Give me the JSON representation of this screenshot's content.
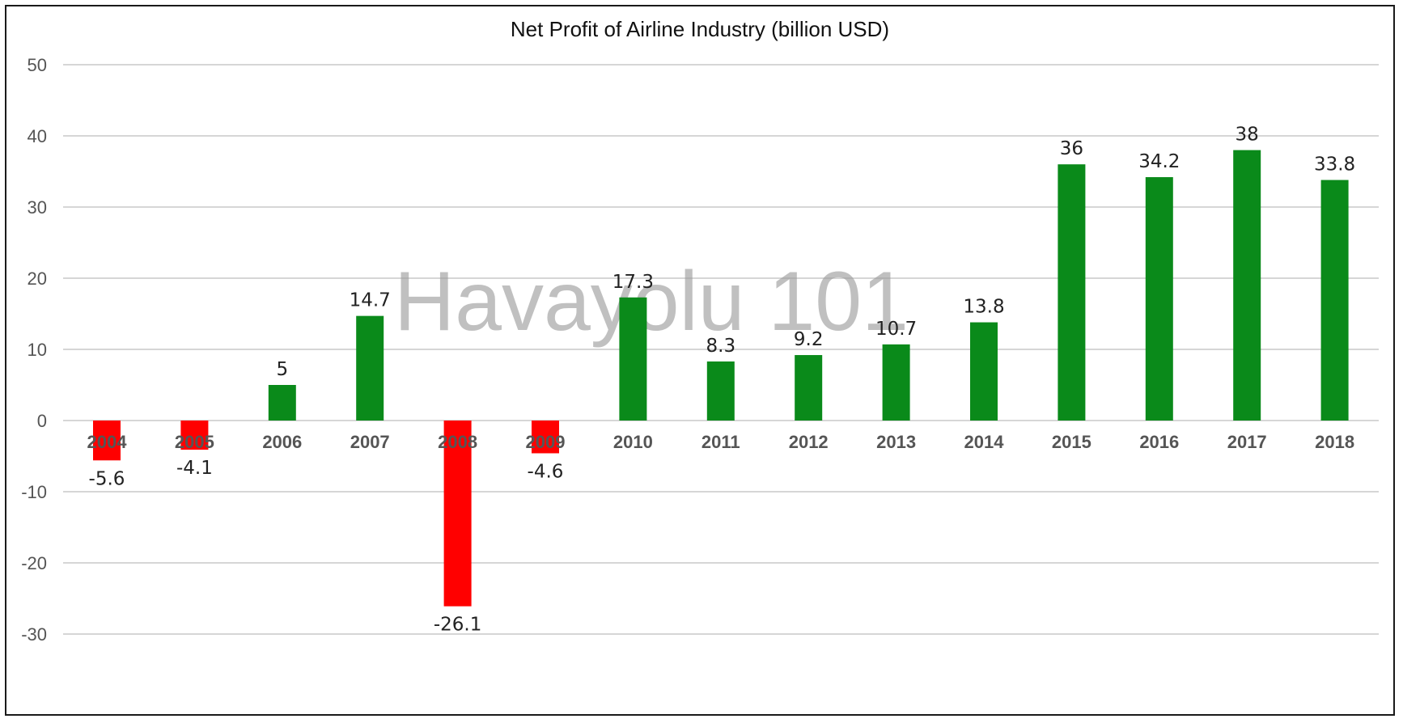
{
  "chart_data": {
    "type": "bar",
    "title": "Net Profit of Airline Industry (billion USD)",
    "xlabel": "",
    "ylabel": "",
    "categories": [
      "2004",
      "2005",
      "2006",
      "2007",
      "2008",
      "2009",
      "2010",
      "2011",
      "2012",
      "2013",
      "2014",
      "2015",
      "2016",
      "2017",
      "2018"
    ],
    "values": [
      -5.6,
      -4.1,
      5,
      14.7,
      -26.1,
      -4.6,
      17.3,
      8.3,
      9.2,
      10.7,
      13.8,
      36,
      34.2,
      38,
      33.8
    ],
    "data_labels": [
      "-5.6",
      "-4.1",
      "5",
      "14.7",
      "-26.1",
      "-4.6",
      "17.3",
      "8.3",
      "9.2",
      "10.7",
      "13.8",
      "36",
      "34.2",
      "38",
      "33.8"
    ],
    "ylim": [
      -30,
      50
    ],
    "y_ticks": [
      50,
      40,
      30,
      20,
      10,
      0,
      -10,
      -20,
      -30
    ],
    "grid": true,
    "legend": "none",
    "colors": {
      "positive": "#0a8a1a",
      "negative": "#ff0000",
      "gridline": "#c8c8c8",
      "frame": "#1a1a1a"
    },
    "watermark": "Havayolu 101"
  }
}
